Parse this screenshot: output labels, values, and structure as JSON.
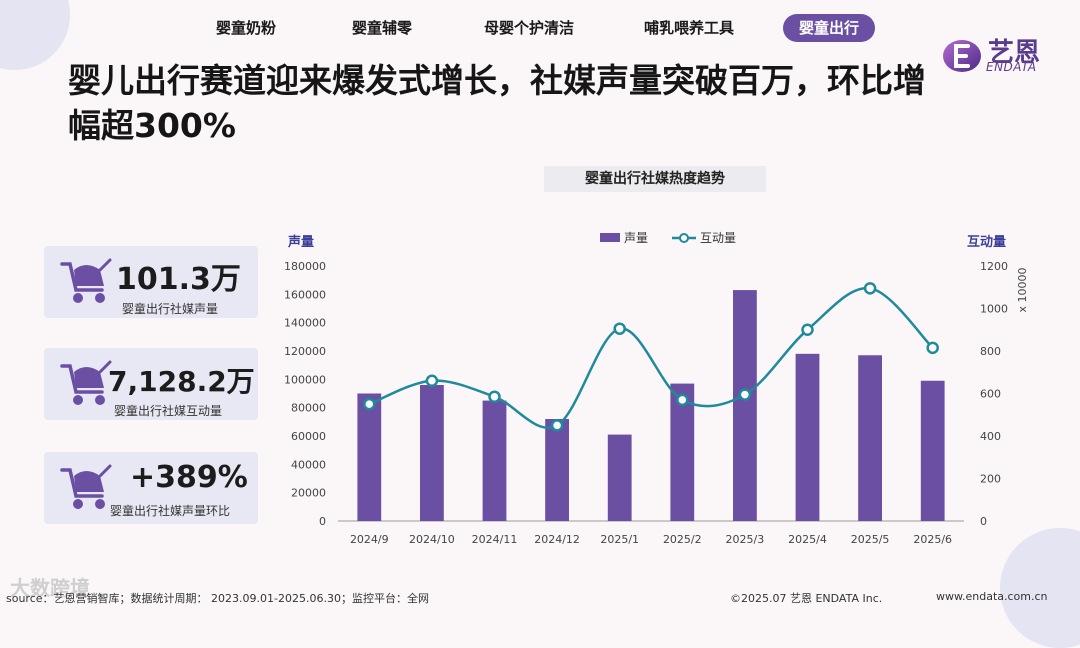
{
  "tabs": [
    "婴童奶粉",
    "婴童辅零",
    "母婴个护清洁",
    "哺乳喂养工具",
    "婴童出行"
  ],
  "active_tab_index": 4,
  "logo": {
    "cn": "艺恩",
    "en": "ENDATA"
  },
  "headline": "婴儿出行赛道迎来爆发式增长，社媒声量突破百万，环比增幅超300%",
  "kpis": [
    {
      "value": "101.3万",
      "label": "婴童出行社媒声量"
    },
    {
      "value": "7,128.2万",
      "label": "婴童出行社媒互动量"
    },
    {
      "value": "+389%",
      "label": "婴童出行社媒声量环比"
    }
  ],
  "chart_data": {
    "type": "bar+line",
    "title": "婴童出行社媒热度趋势",
    "categories": [
      "2024/9",
      "2024/10",
      "2024/11",
      "2024/12",
      "2025/1",
      "2025/2",
      "2025/3",
      "2025/4",
      "2025/5",
      "2025/6"
    ],
    "series": [
      {
        "name": "声量",
        "type": "bar",
        "axis": "left",
        "values": [
          90000,
          96000,
          85000,
          72000,
          61000,
          97000,
          163000,
          118000,
          117000,
          99000
        ]
      },
      {
        "name": "互动量",
        "type": "line",
        "axis": "right",
        "values": [
          550,
          660,
          585,
          450,
          905,
          570,
          595,
          900,
          1095,
          815
        ]
      }
    ],
    "ylabel_left": "声量",
    "ylabel_right": "互动量",
    "right_unit": "x 10000",
    "ylim_left": [
      0,
      180000
    ],
    "ylim_right": [
      0,
      1200
    ],
    "yticks_left": [
      "0",
      "20000",
      "40000",
      "60000",
      "80000",
      "100000",
      "120000",
      "140000",
      "160000",
      "180000"
    ],
    "yticks_right": [
      "0",
      "200",
      "400",
      "600",
      "800",
      "1000",
      "1200"
    ],
    "legend_position": "top-center",
    "colors": {
      "bar": "#6a4fa3",
      "line": "#1f8a9c"
    }
  },
  "footer": {
    "source": "source：艺恩营销智库；数据统计周期： 2023.09.01-2025.06.30；监控平台：全网",
    "copyright": "©2025.07  艺恩 ENDATA Inc.",
    "website": "www.endata.com.cn",
    "watermark": "大数跨境"
  }
}
